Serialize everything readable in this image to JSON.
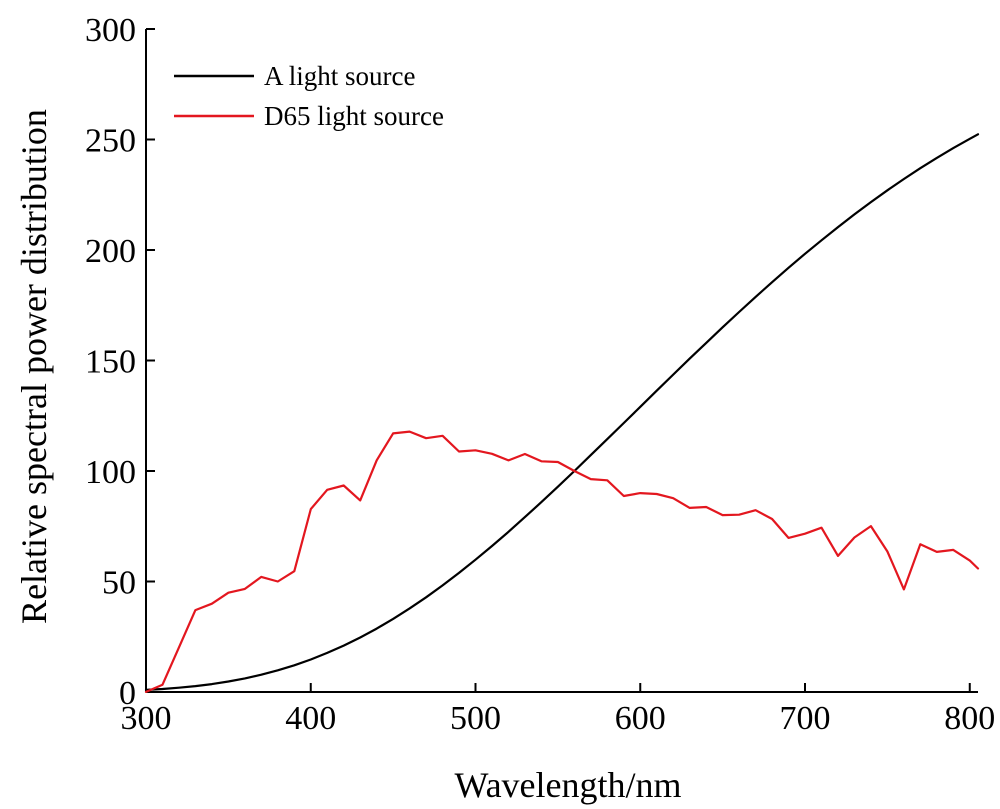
{
  "chart_data": {
    "type": "line",
    "title": "",
    "xlabel": "Wavelength/nm",
    "ylabel": "Relative spectral power distribution",
    "xlim": [
      300,
      805
    ],
    "ylim": [
      0,
      300
    ],
    "xticks": [
      300,
      400,
      500,
      600,
      700,
      800
    ],
    "yticks": [
      0,
      50,
      100,
      150,
      200,
      250,
      300
    ],
    "grid": false,
    "legend_position": "top-left",
    "series": [
      {
        "name": "A light source",
        "color": "#000000",
        "x": [
          300,
          310,
          320,
          330,
          340,
          350,
          360,
          370,
          380,
          390,
          400,
          410,
          420,
          430,
          440,
          450,
          460,
          470,
          480,
          490,
          500,
          510,
          520,
          530,
          540,
          550,
          560,
          570,
          580,
          590,
          600,
          610,
          620,
          630,
          640,
          650,
          660,
          670,
          680,
          690,
          700,
          710,
          720,
          730,
          740,
          750,
          760,
          770,
          780,
          790,
          800,
          805
        ],
        "y": [
          0.93,
          1.36,
          1.93,
          2.66,
          3.59,
          4.74,
          6.14,
          7.82,
          9.8,
          12.09,
          14.71,
          17.68,
          20.99,
          24.67,
          28.7,
          33.09,
          37.81,
          42.87,
          48.24,
          53.91,
          59.86,
          66.06,
          72.5,
          79.13,
          85.95,
          92.91,
          100.0,
          107.18,
          114.44,
          121.73,
          129.04,
          136.35,
          143.62,
          150.84,
          157.98,
          165.03,
          171.96,
          178.77,
          185.43,
          191.93,
          198.26,
          204.41,
          210.36,
          216.12,
          221.67,
          227.0,
          232.12,
          237.01,
          241.68,
          246.12,
          250.33,
          252.35
        ]
      },
      {
        "name": "D65 light source",
        "color": "#e3171f",
        "x": [
          300,
          310,
          320,
          330,
          340,
          350,
          360,
          370,
          380,
          390,
          400,
          410,
          420,
          430,
          440,
          450,
          460,
          470,
          480,
          490,
          500,
          510,
          520,
          530,
          540,
          550,
          560,
          570,
          580,
          590,
          600,
          610,
          620,
          630,
          640,
          650,
          660,
          670,
          680,
          690,
          700,
          710,
          720,
          730,
          740,
          750,
          760,
          770,
          780,
          790,
          800,
          805
        ],
        "y": [
          0.03,
          3.29,
          20.24,
          37.05,
          39.95,
          44.91,
          46.64,
          52.09,
          49.98,
          54.65,
          82.75,
          91.49,
          93.43,
          86.68,
          104.86,
          117.01,
          117.81,
          114.86,
          115.92,
          108.81,
          109.35,
          107.8,
          104.79,
          107.69,
          104.41,
          104.05,
          100.0,
          96.33,
          95.79,
          88.69,
          90.01,
          89.6,
          87.7,
          83.29,
          83.7,
          80.03,
          80.21,
          82.28,
          78.28,
          69.72,
          71.61,
          74.35,
          61.6,
          69.89,
          75.09,
          63.59,
          46.42,
          66.81,
          63.38,
          64.3,
          59.45,
          55.9
        ]
      }
    ]
  }
}
